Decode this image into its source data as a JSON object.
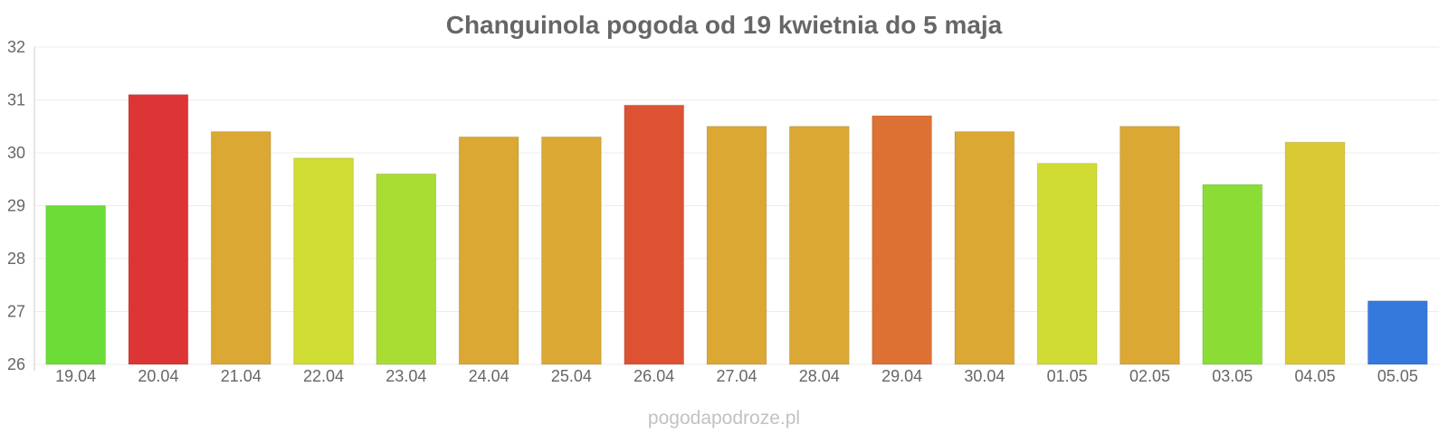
{
  "chart_data": {
    "type": "bar",
    "title": "Changuinola pogoda od 19 kwietnia do 5 maja",
    "xlabel": "",
    "ylabel": "",
    "ylim": [
      26,
      32
    ],
    "yticks": [
      "26",
      "27",
      "28",
      "29",
      "30",
      "31",
      "32"
    ],
    "grid": true,
    "categories": [
      "19.04",
      "20.04",
      "21.04",
      "22.04",
      "23.04",
      "24.04",
      "25.04",
      "26.04",
      "27.04",
      "28.04",
      "29.04",
      "30.04",
      "01.05",
      "02.05",
      "03.05",
      "04.05",
      "05.05"
    ],
    "values": [
      29.0,
      31.1,
      30.4,
      29.9,
      29.6,
      30.3,
      30.3,
      30.9,
      30.5,
      30.5,
      30.7,
      30.4,
      29.8,
      30.5,
      29.4,
      30.2,
      27.2
    ],
    "colors": [
      "#6cdd36",
      "#dd3535",
      "#dba834",
      "#d0dd33",
      "#aadd33",
      "#dba834",
      "#dba834",
      "#dd5233",
      "#dba834",
      "#dba834",
      "#dd7033",
      "#dba834",
      "#d0db33",
      "#dba834",
      "#8bdd36",
      "#dbc934",
      "#3579dd"
    ]
  },
  "watermark": "pogodapodroze.pl"
}
